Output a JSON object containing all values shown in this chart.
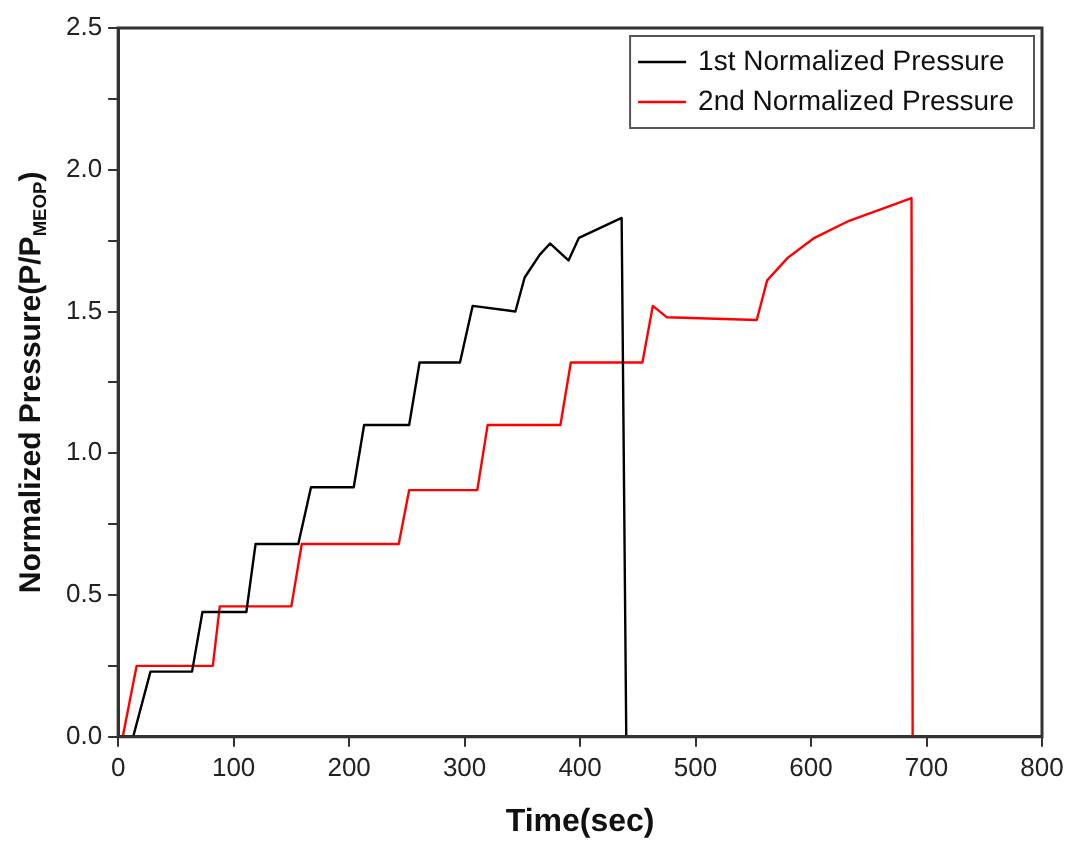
{
  "chart_data": {
    "type": "line",
    "xlabel": "Time(sec)",
    "ylabel": "Normalized Pressure(P/P$_{MEOP}$)",
    "xlim": [
      0,
      800
    ],
    "xticks": [
      0,
      100,
      200,
      300,
      400,
      500,
      600,
      700,
      800
    ],
    "ylim": [
      0,
      2.5
    ],
    "yticks": [
      {
        "value": 0,
        "label": "0.0"
      },
      {
        "value": 0.25,
        "label": null
      },
      {
        "value": 0.5,
        "label": "0.5"
      },
      {
        "value": 0.75,
        "label": null
      },
      {
        "value": 1,
        "label": "1.0"
      },
      {
        "value": 1.25,
        "label": null
      },
      {
        "value": 1.5,
        "label": "1.5"
      },
      {
        "value": 1.75,
        "label": null
      },
      {
        "value": 2,
        "label": "2.0"
      },
      {
        "value": 2.25,
        "label": null
      },
      {
        "value": 2.5,
        "label": "2.5"
      }
    ],
    "grid": false,
    "legend": "top right",
    "marker": "none",
    "line_style": "solid",
    "series": [
      {
        "name": "1st Normalized Pressure",
        "color": "#000000",
        "x": [
          0,
          13,
          28,
          64,
          73,
          111,
          119,
          156,
          167,
          204,
          213,
          252,
          261,
          296,
          307,
          344,
          352,
          365,
          374,
          390,
          399,
          436,
          440
        ],
        "values": [
          0,
          0,
          0.23,
          0.23,
          0.44,
          0.44,
          0.68,
          0.68,
          0.88,
          0.88,
          1.1,
          1.1,
          1.32,
          1.32,
          1.52,
          1.5,
          1.62,
          1.7,
          1.74,
          1.68,
          1.76,
          1.83,
          0
        ]
      },
      {
        "name": "2nd Normalized Pressure",
        "color": "#ff0000",
        "x": [
          0,
          4,
          16,
          82,
          88,
          150,
          159,
          243,
          252,
          311,
          320,
          383,
          392,
          454,
          463,
          475,
          553,
          562,
          580,
          603,
          633,
          687,
          688
        ],
        "values": [
          0,
          0,
          0.25,
          0.25,
          0.46,
          0.46,
          0.68,
          0.68,
          0.87,
          0.87,
          1.1,
          1.1,
          1.32,
          1.32,
          1.52,
          1.48,
          1.47,
          1.61,
          1.69,
          1.76,
          1.82,
          1.9,
          0
        ]
      }
    ]
  }
}
